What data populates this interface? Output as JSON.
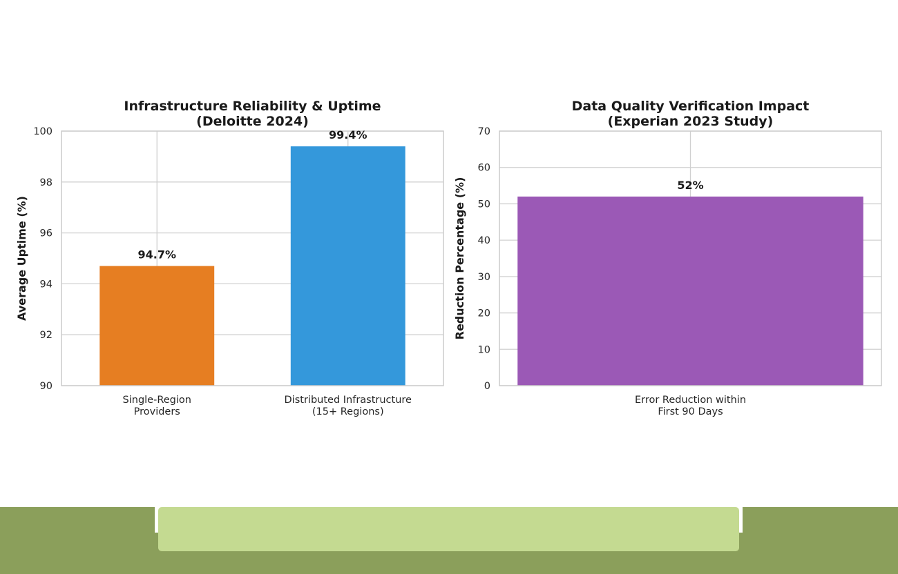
{
  "chart_data": [
    {
      "type": "bar",
      "title": "Infrastructure Reliability & Uptime\n(Deloitte 2024)",
      "categories": [
        "Single-Region\nProviders",
        "Distributed Infrastructure\n(15+ Regions)"
      ],
      "values": [
        94.7,
        99.4
      ],
      "data_labels": [
        "94.7%",
        "99.4%"
      ],
      "colors": [
        "#e67e22",
        "#3498db"
      ],
      "xlabel": "",
      "ylabel": "Average Uptime (%)",
      "ylim": [
        90,
        100
      ],
      "yticks": [
        90,
        92,
        94,
        96,
        98,
        100
      ],
      "grid": true
    },
    {
      "type": "bar",
      "title": "Data Quality Verification Impact\n(Experian 2023 Study)",
      "categories": [
        "Error Reduction within\nFirst 90 Days"
      ],
      "values": [
        52
      ],
      "data_labels": [
        "52%"
      ],
      "colors": [
        "#9b59b6"
      ],
      "xlabel": "",
      "ylabel": "Reduction Percentage (%)",
      "ylim": [
        0,
        70
      ],
      "yticks": [
        0,
        10,
        20,
        30,
        40,
        50,
        60,
        70
      ],
      "grid": true
    }
  ],
  "footer": {
    "band_color": "#8b9f5b",
    "bar_color": "#c4da91"
  }
}
